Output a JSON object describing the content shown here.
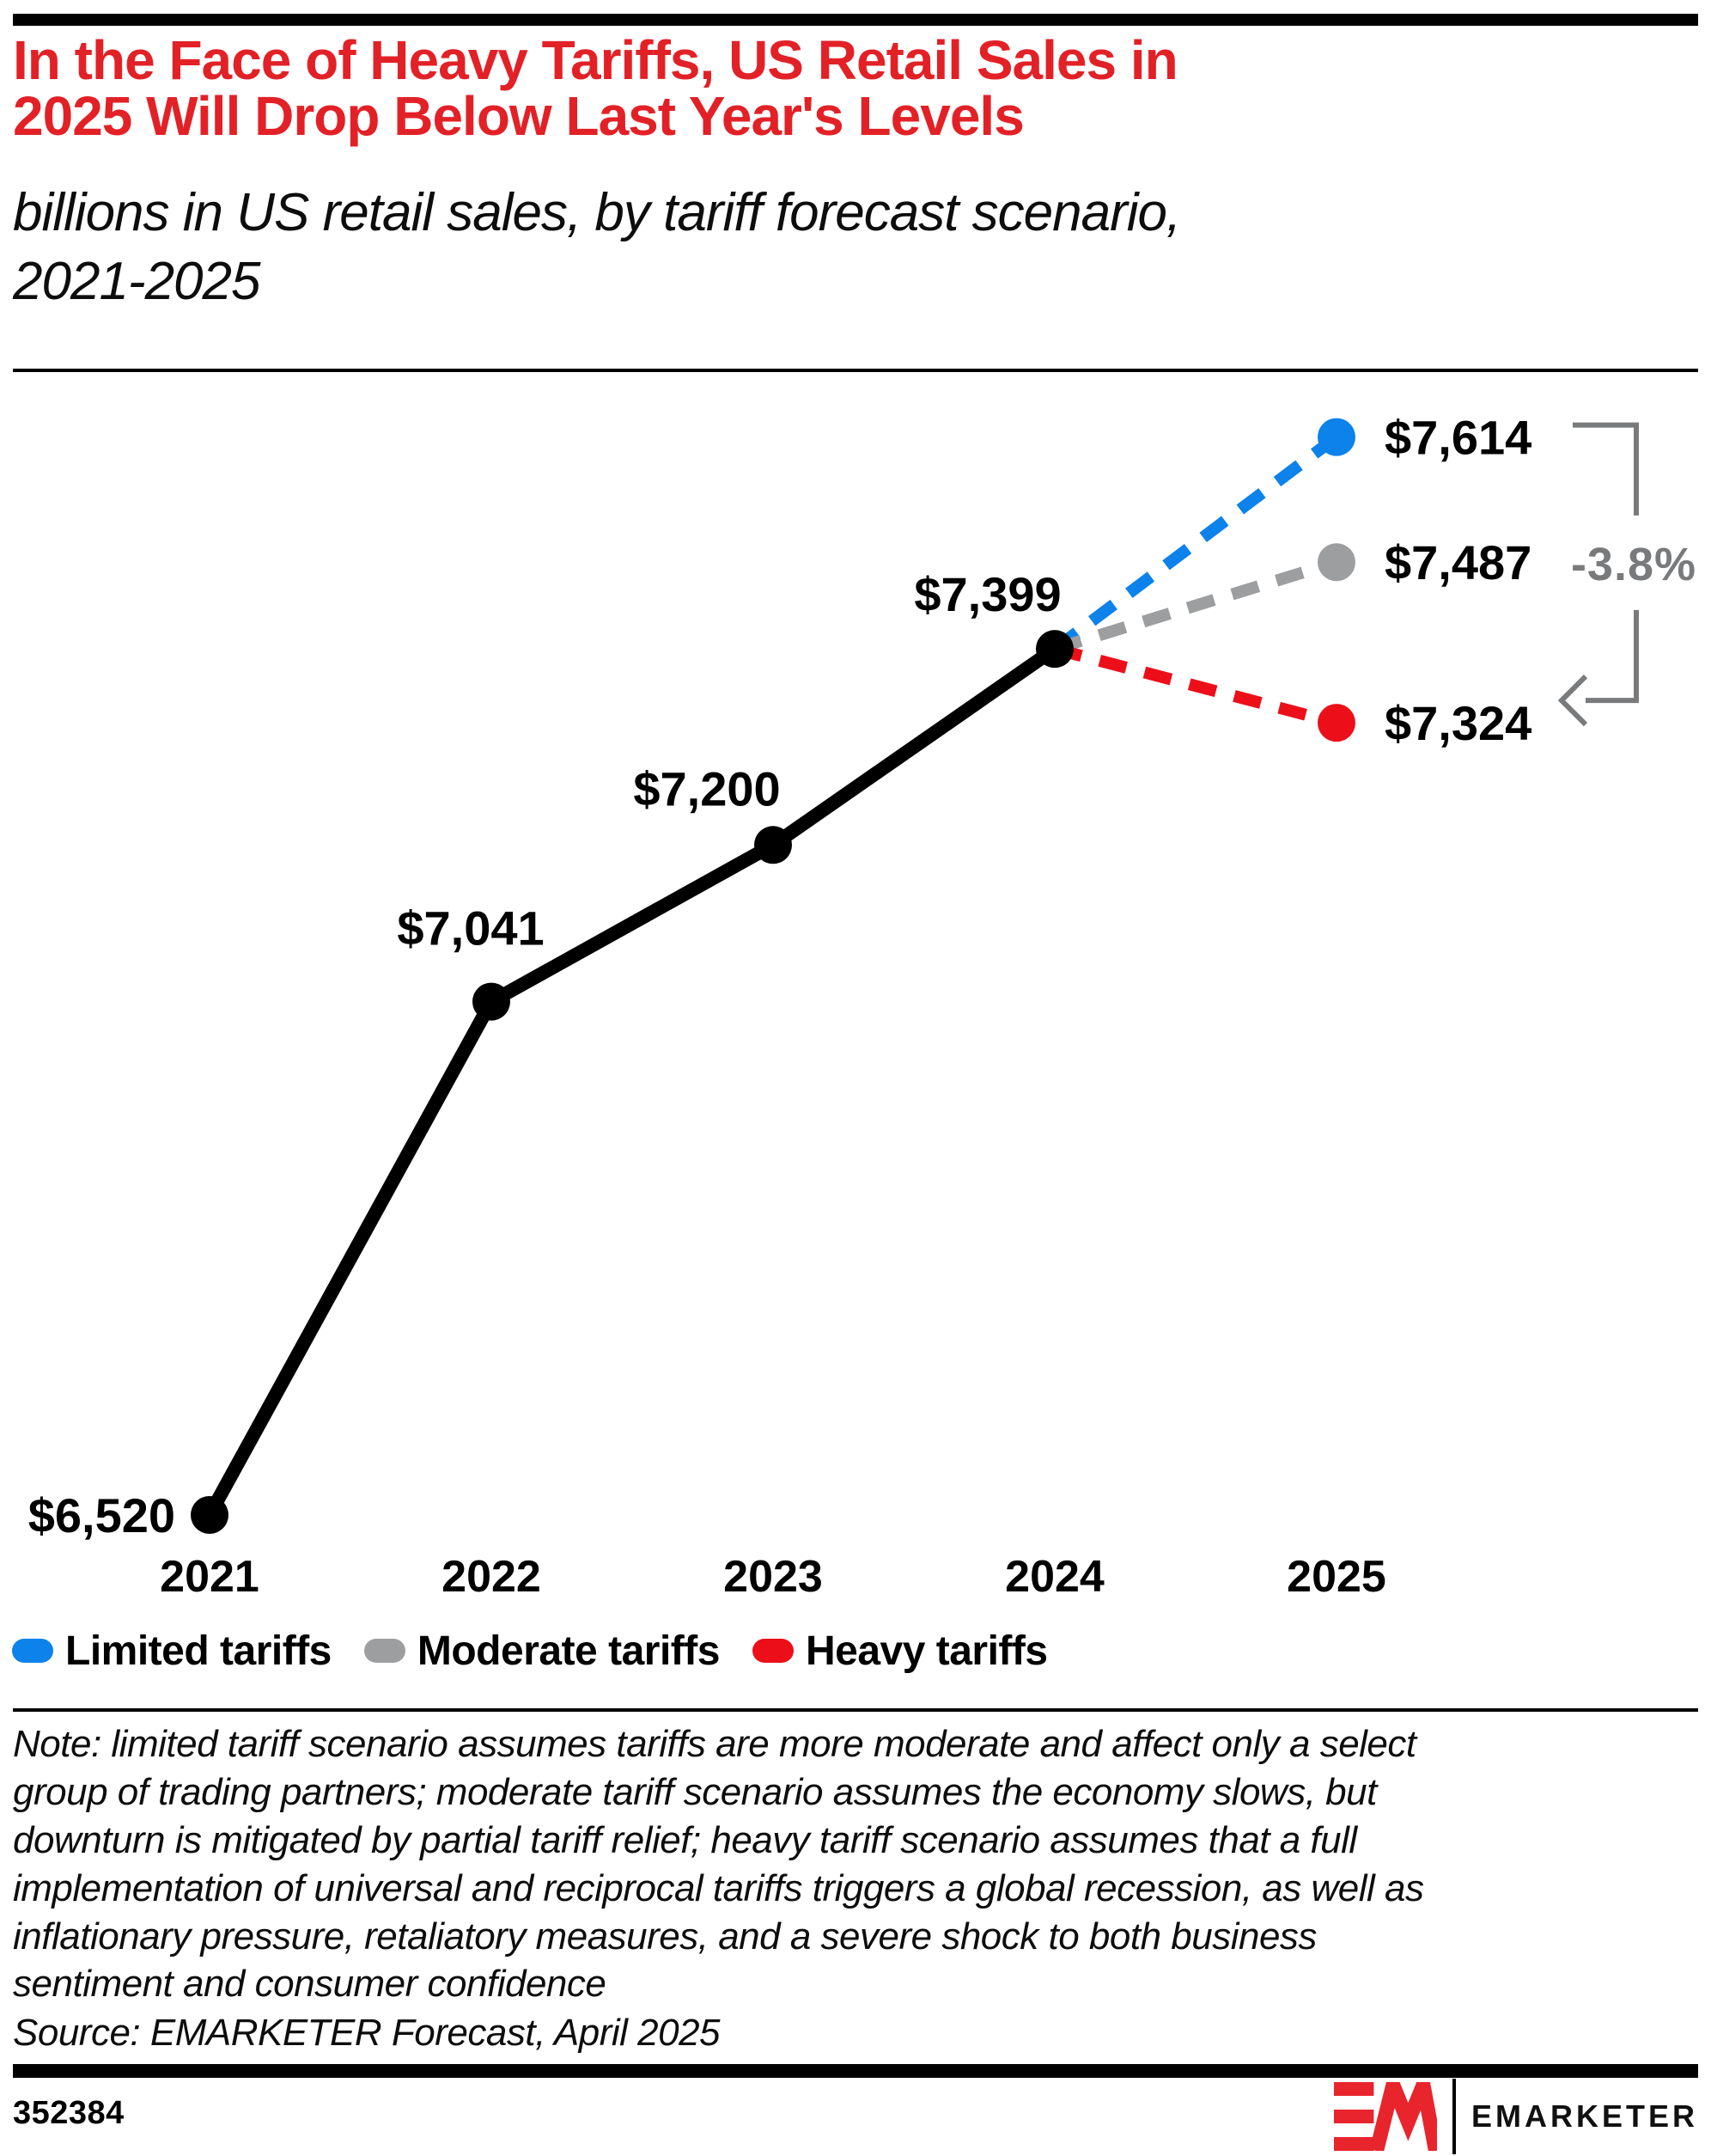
{
  "chart_data": {
    "type": "line",
    "title": "In the Face of Heavy Tariffs, US Retail Sales in\n2025 Will Drop Below Last Year's Levels",
    "subtitle": "billions in US retail sales, by tariff forecast scenario,\n2021-2025",
    "unit": "billions of US dollars",
    "x": [
      2021,
      2022,
      2023,
      2024
    ],
    "x_ticks": [
      "2021",
      "2022",
      "2023",
      "2024",
      "2025"
    ],
    "actual": {
      "name": "US retail sales (actual)",
      "color": "#000000",
      "values": [
        6520,
        7041,
        7200,
        7399
      ],
      "labels": [
        "$6,520",
        "$7,041",
        "$7,200",
        "$7,399"
      ]
    },
    "forecast_year": 2025,
    "scenarios": [
      {
        "name": "Limited tariffs",
        "value": 7614,
        "label": "$7,614",
        "color": "#0c82ea"
      },
      {
        "name": "Moderate tariffs",
        "value": 7487,
        "label": "$7,487",
        "color": "#9d9ea0"
      },
      {
        "name": "Heavy tariffs",
        "value": 7324,
        "label": "$7,324",
        "color": "#ec0f1a"
      }
    ],
    "annotation": {
      "text": "-3.8%",
      "color": "#797a7c"
    },
    "ylim": [
      6400,
      7700
    ],
    "grid": false,
    "legend_position": "bottom"
  },
  "note": "Note: limited tariff scenario assumes tariffs are more moderate and affect only a select\ngroup of trading partners; moderate tariff scenario assumes the economy slows, but\ndownturn is mitigated by partial tariff relief; heavy tariff scenario assumes that a full\nimplementation of universal and reciprocal tariffs triggers a global recession, as well as\ninflationary pressure, retaliatory measures, and a severe shock to both business\nsentiment and consumer confidence",
  "source": "Source: EMARKETER Forecast, April 2025",
  "footer": {
    "chart_id": "352384",
    "logo_text": "EMARKETER"
  }
}
